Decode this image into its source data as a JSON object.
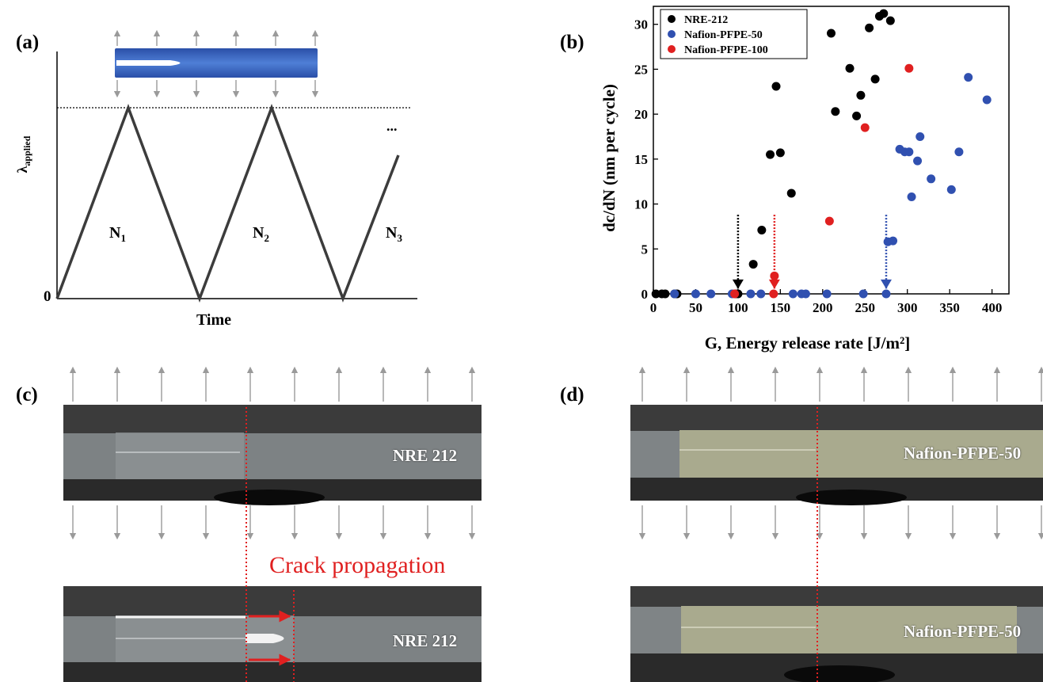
{
  "panel_a": {
    "label": "(a)",
    "y_label_main": "λ",
    "y_label_sub": "applied",
    "x_label": "Time",
    "origin_label": "0",
    "cycles": [
      {
        "main": "N",
        "sub": "1"
      },
      {
        "main": "N",
        "sub": "2"
      },
      {
        "main": "N",
        "sub": "3"
      }
    ],
    "ellipsis": "..."
  },
  "panel_b": {
    "label": "(b)"
  },
  "chart_data": {
    "type": "scatter",
    "title": "",
    "xlabel": "G, Energy release rate [J/m²]",
    "ylabel": "dc/dN (nm per cycle)",
    "xlim": [
      0,
      420
    ],
    "ylim": [
      0,
      32
    ],
    "xticks": [
      0,
      50,
      100,
      150,
      200,
      250,
      300,
      350,
      400
    ],
    "yticks": [
      0,
      5,
      10,
      15,
      20,
      25,
      30
    ],
    "legend_position": "top-left",
    "grid": false,
    "series": [
      {
        "name": "NRE-212",
        "color": "#000000",
        "points": [
          [
            3,
            0
          ],
          [
            10,
            0
          ],
          [
            14,
            0
          ],
          [
            25,
            0
          ],
          [
            28,
            0
          ],
          [
            97,
            0
          ],
          [
            100,
            0
          ],
          [
            118,
            3.3
          ],
          [
            128,
            7.1
          ],
          [
            138,
            15.5
          ],
          [
            145,
            23.1
          ],
          [
            150,
            15.7
          ],
          [
            163,
            11.2
          ],
          [
            210,
            29.0
          ],
          [
            215,
            20.3
          ],
          [
            232,
            25.1
          ],
          [
            240,
            19.8
          ],
          [
            245,
            22.1
          ],
          [
            255,
            29.6
          ],
          [
            262,
            23.9
          ],
          [
            267,
            30.9
          ],
          [
            272,
            31.2
          ],
          [
            280,
            30.4
          ]
        ]
      },
      {
        "name": "Nafion-PFPE-50",
        "color": "#3050b0",
        "points": [
          [
            25,
            0
          ],
          [
            50,
            0
          ],
          [
            68,
            0
          ],
          [
            93,
            0
          ],
          [
            115,
            0
          ],
          [
            127,
            0
          ],
          [
            165,
            0
          ],
          [
            175,
            0
          ],
          [
            180,
            0
          ],
          [
            205,
            0
          ],
          [
            248,
            0
          ],
          [
            275,
            0
          ],
          [
            277,
            5.8
          ],
          [
            283,
            5.9
          ],
          [
            291,
            16.1
          ],
          [
            297,
            15.8
          ],
          [
            302,
            15.8
          ],
          [
            305,
            10.8
          ],
          [
            312,
            14.8
          ],
          [
            315,
            17.5
          ],
          [
            328,
            12.8
          ],
          [
            352,
            11.6
          ],
          [
            361,
            15.8
          ],
          [
            372,
            24.1
          ],
          [
            394,
            21.6
          ]
        ]
      },
      {
        "name": "Nafion-PFPE-100",
        "color": "#e02020",
        "points": [
          [
            96,
            0
          ],
          [
            142,
            0
          ],
          [
            143,
            2.0
          ],
          [
            208,
            8.1
          ],
          [
            250,
            18.5
          ],
          [
            302,
            25.1
          ]
        ]
      }
    ],
    "threshold_markers": [
      {
        "series": "NRE-212",
        "x": 100
      },
      {
        "series": "Nafion-PFPE-100",
        "x": 143
      },
      {
        "series": "Nafion-PFPE-50",
        "x": 275
      }
    ]
  },
  "panel_c": {
    "label": "(c)",
    "top_sample": "NRE 212",
    "bottom_sample": "NRE 212",
    "annotation": "Crack propagation"
  },
  "panel_d": {
    "label": "(d)",
    "top_sample": "Nafion-PFPE-50",
    "bottom_sample": "Nafion-PFPE-50"
  },
  "colors": {
    "crack_red": "#e02020",
    "blue_series": "#3050b0",
    "film_blue": "#3a66c4",
    "arrow_gray": "#9a9a9a"
  }
}
